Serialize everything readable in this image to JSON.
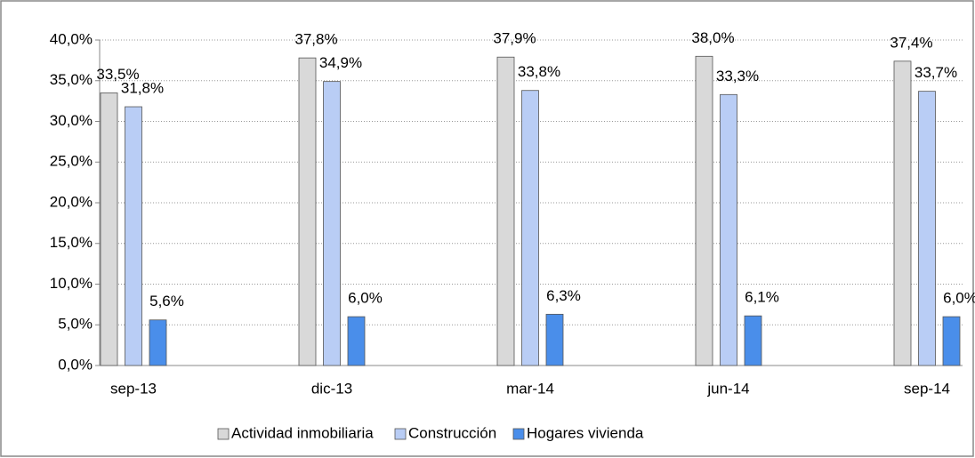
{
  "chart_data": {
    "type": "bar",
    "categories": [
      "sep-13",
      "dic-13",
      "mar-14",
      "jun-14",
      "sep-14"
    ],
    "series": [
      {
        "name": "Actividad inmobiliaria",
        "color": "#d9d9d9",
        "values": [
          33.5,
          37.8,
          37.9,
          38.0,
          37.4
        ],
        "value_labels": [
          "33,5%",
          "37,8%",
          "37,9%",
          "38,0%",
          "37,4%"
        ]
      },
      {
        "name": "Construcción",
        "color": "#b9cdf5",
        "values": [
          31.8,
          34.9,
          33.8,
          33.3,
          33.7
        ],
        "value_labels": [
          "31,8%",
          "34,9%",
          "33,8%",
          "33,3%",
          "33,7%"
        ]
      },
      {
        "name": "Hogares vivienda",
        "color": "#4a8eea",
        "values": [
          5.6,
          6.0,
          6.3,
          6.1,
          6.0
        ],
        "value_labels": [
          "5,6%",
          "6,0%",
          "6,3%",
          "6,1%",
          "6,0%"
        ]
      }
    ],
    "ylim": [
      0,
      40
    ],
    "yticks": [
      {
        "value": 0,
        "label": "0,0%"
      },
      {
        "value": 5,
        "label": "5,0%"
      },
      {
        "value": 10,
        "label": "10,0%"
      },
      {
        "value": 15,
        "label": "15,0%"
      },
      {
        "value": 20,
        "label": "20,0%"
      },
      {
        "value": 25,
        "label": "25,0%"
      },
      {
        "value": 30,
        "label": "30,0%"
      },
      {
        "value": 35,
        "label": "35,0%"
      },
      {
        "value": 40,
        "label": "40,0%"
      }
    ],
    "grid": true,
    "legend": "bottom"
  }
}
